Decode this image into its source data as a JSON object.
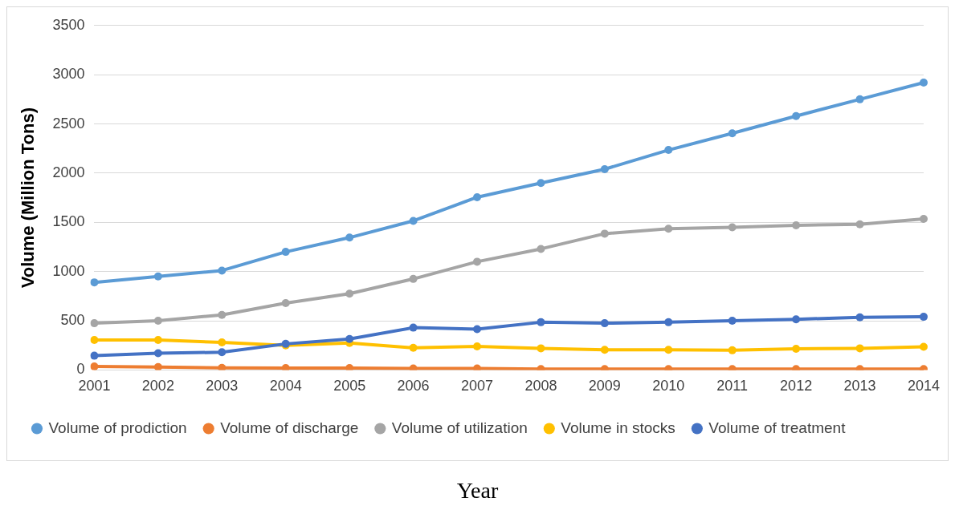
{
  "chart_data": {
    "type": "line",
    "xlabel": "Year",
    "ylabel": "Volume (Million Tons)",
    "categories": [
      "2001",
      "2002",
      "2003",
      "2004",
      "2005",
      "2006",
      "2007",
      "2008",
      "2009",
      "2010",
      "2011",
      "2012",
      "2013",
      "2014"
    ],
    "ylim": [
      0,
      3500
    ],
    "yticks": [
      0,
      500,
      1000,
      1500,
      2000,
      2500,
      3000,
      3500
    ],
    "grid": "y",
    "legend": "bottom",
    "marker": "circle",
    "line_style": "solid",
    "series": [
      {
        "name": "Volume of prodiction",
        "color": "#5b9bd5",
        "values": [
          890,
          950,
          1010,
          1200,
          1345,
          1515,
          1755,
          1900,
          2040,
          2235,
          2405,
          2580,
          2750,
          2920
        ]
      },
      {
        "name": "Volume of discharge",
        "color": "#ed7d31",
        "values": [
          35,
          30,
          22,
          20,
          20,
          15,
          15,
          10,
          10,
          10,
          10,
          10,
          10,
          10
        ]
      },
      {
        "name": "Volume of utilization",
        "color": "#a5a5a5",
        "values": [
          475,
          500,
          560,
          680,
          775,
          925,
          1100,
          1230,
          1385,
          1435,
          1450,
          1470,
          1480,
          1535
        ]
      },
      {
        "name": "Volume in stocks",
        "color": "#ffc000",
        "values": [
          305,
          305,
          280,
          250,
          275,
          225,
          240,
          220,
          205,
          205,
          200,
          215,
          220,
          235
        ]
      },
      {
        "name": "Volume of treatment",
        "color": "#4472c4",
        "values": [
          145,
          170,
          180,
          265,
          315,
          430,
          415,
          485,
          475,
          485,
          500,
          515,
          535,
          540
        ]
      }
    ]
  }
}
